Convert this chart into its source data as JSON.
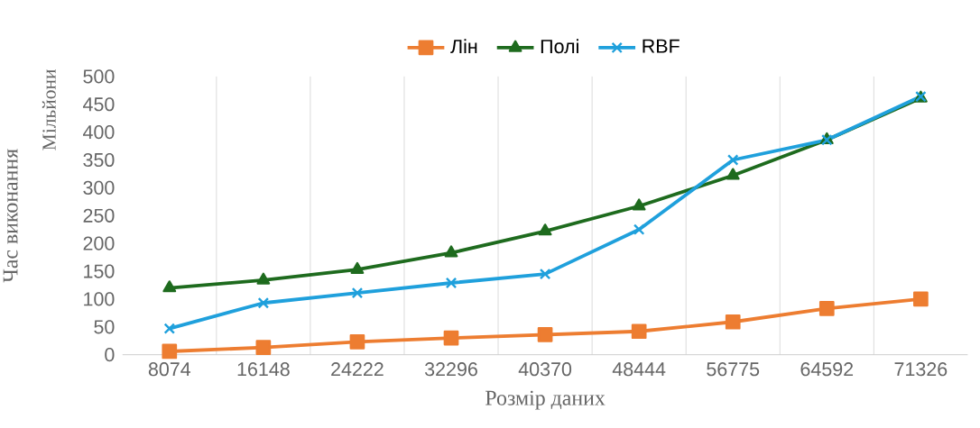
{
  "chart_data": {
    "type": "line",
    "categories": [
      "8074",
      "16148",
      "24222",
      "32296",
      "40370",
      "48444",
      "56775",
      "64592",
      "71326"
    ],
    "series": [
      {
        "name": "Лін",
        "color": "#ed7d31",
        "marker": "square",
        "values": [
          6,
          13,
          23,
          30,
          36,
          42,
          59,
          83,
          100
        ]
      },
      {
        "name": "Полі",
        "color": "#1e6b1e",
        "marker": "triangle",
        "values": [
          120,
          134,
          153,
          183,
          222,
          267,
          322,
          386,
          461
        ]
      },
      {
        "name": "RBF",
        "color": "#1fa0dc",
        "marker": "cross",
        "values": [
          47,
          93,
          111,
          129,
          145,
          225,
          350,
          386,
          464
        ]
      }
    ],
    "xlabel": "Розмір даних",
    "ylabel": "Час виконання",
    "annotations": [
      "Мільйони"
    ],
    "ylim": [
      0,
      500
    ],
    "yticks": [
      0,
      50,
      100,
      150,
      200,
      250,
      300,
      350,
      400,
      450,
      500
    ],
    "grid": "x",
    "legend": "top",
    "line_style": "solid"
  }
}
